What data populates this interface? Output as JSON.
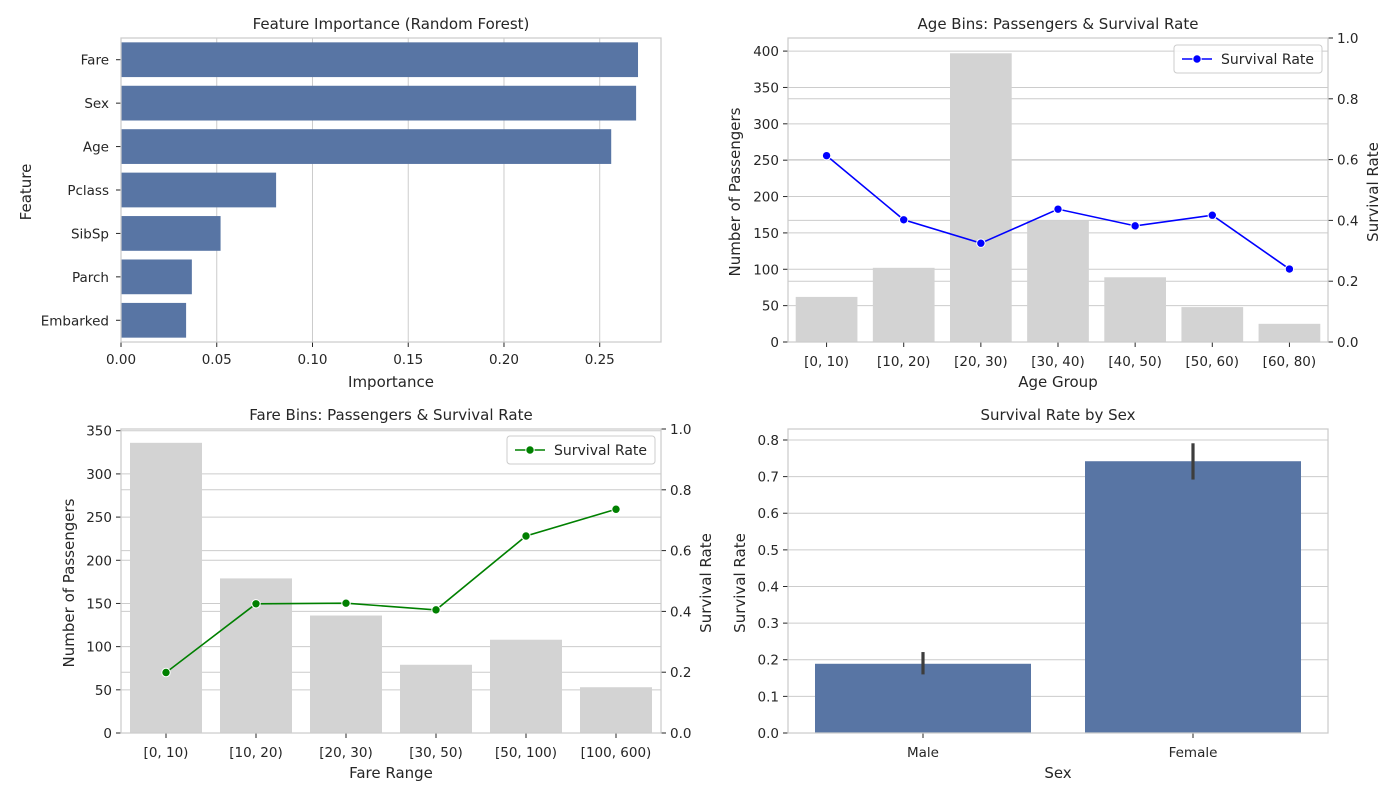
{
  "colors": {
    "bar_blue": "#5875a4",
    "bar_gray": "#d3d3d3",
    "grid": "#cccccc",
    "spine": "#cccccc",
    "text": "#262626",
    "age_line": "#0000ff",
    "fare_line": "#008000",
    "errbar": "#3d3d3d"
  },
  "chart_data": [
    {
      "id": "feature_importance",
      "type": "bar",
      "orientation": "horizontal",
      "title": "Feature Importance (Random Forest)",
      "xlabel": "Importance",
      "ylabel": "Feature",
      "categories": [
        "Fare",
        "Sex",
        "Age",
        "Pclass",
        "SibSp",
        "Parch",
        "Embarked"
      ],
      "values": [
        0.27,
        0.269,
        0.256,
        0.081,
        0.052,
        0.037,
        0.034
      ],
      "xlim": [
        0,
        0.282
      ],
      "xticks": [
        0.0,
        0.05,
        0.1,
        0.15,
        0.2,
        0.25
      ],
      "xtick_labels": [
        "0.00",
        "0.05",
        "0.10",
        "0.15",
        "0.20",
        "0.25"
      ],
      "grid": true
    },
    {
      "id": "age_bins",
      "type": "bar",
      "title": "Age Bins: Passengers & Survival Rate",
      "xlabel": "Age Group",
      "ylabel": "Number of Passengers",
      "y2label": "Survival Rate",
      "categories": [
        "[0, 10)",
        "[10, 20)",
        "[20, 30)",
        "[30, 40)",
        "[40, 50)",
        "[50, 60)",
        "[60, 80)"
      ],
      "bars": {
        "values": [
          62,
          102,
          397,
          167,
          89,
          48,
          25
        ]
      },
      "line": {
        "name": "Survival Rate",
        "values": [
          0.613,
          0.402,
          0.325,
          0.437,
          0.382,
          0.417,
          0.24
        ]
      },
      "ylim": [
        0,
        418
      ],
      "yticks": [
        0,
        50,
        100,
        150,
        200,
        250,
        300,
        350,
        400
      ],
      "y2lim": [
        0,
        1.0
      ],
      "y2ticks": [
        0.0,
        0.2,
        0.4,
        0.6,
        0.8,
        1.0
      ],
      "y2tick_labels": [
        "0.0",
        "0.2",
        "0.4",
        "0.6",
        "0.8",
        "1.0"
      ],
      "legend": "top-right",
      "grid": true
    },
    {
      "id": "fare_bins",
      "type": "bar",
      "title": "Fare Bins: Passengers & Survival Rate",
      "xlabel": "Fare Range",
      "ylabel": "Number of Passengers",
      "y2label": "Survival Rate",
      "categories": [
        "[0, 10)",
        "[10, 20)",
        "[20, 30)",
        "[30, 50)",
        "[50, 100)",
        "[100, 600)"
      ],
      "bars": {
        "values": [
          336,
          179,
          136,
          79,
          108,
          53
        ]
      },
      "line": {
        "name": "Survival Rate",
        "values": [
          0.199,
          0.425,
          0.427,
          0.405,
          0.648,
          0.736
        ]
      },
      "ylim": [
        0,
        352
      ],
      "yticks": [
        0,
        50,
        100,
        150,
        200,
        250,
        300,
        350
      ],
      "y2lim": [
        0,
        1.0
      ],
      "y2ticks": [
        0.0,
        0.2,
        0.4,
        0.6,
        0.8,
        1.0
      ],
      "y2tick_labels": [
        "0.0",
        "0.2",
        "0.4",
        "0.6",
        "0.8",
        "1.0"
      ],
      "legend": "top-right",
      "grid": true
    },
    {
      "id": "survival_by_sex",
      "type": "bar",
      "title": "Survival Rate by Sex",
      "xlabel": "Sex",
      "ylabel": "Survival Rate",
      "categories": [
        "Male",
        "Female"
      ],
      "values": [
        0.189,
        0.742
      ],
      "error_low": [
        0.16,
        0.692
      ],
      "error_high": [
        0.221,
        0.791
      ],
      "ylim": [
        0,
        0.83
      ],
      "yticks": [
        0.0,
        0.1,
        0.2,
        0.3,
        0.4,
        0.5,
        0.6,
        0.7,
        0.8
      ],
      "ytick_labels": [
        "0.0",
        "0.1",
        "0.2",
        "0.3",
        "0.4",
        "0.5",
        "0.6",
        "0.7",
        "0.8"
      ],
      "grid": true
    }
  ]
}
